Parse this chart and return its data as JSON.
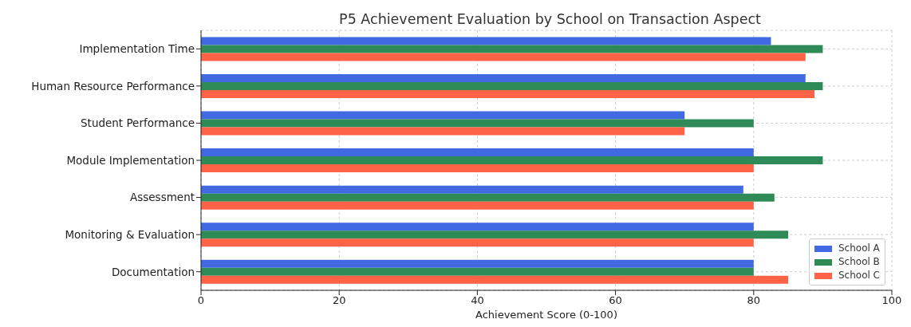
{
  "chart_data": {
    "type": "bar",
    "orientation": "horizontal",
    "title": "P5 Achievement Evaluation by School on Transaction Aspect",
    "xlabel": "Achievement Score (0-100)",
    "categories": [
      "Implementation Time",
      "Human Resource Performance",
      "Student Performance",
      "Module Implementation",
      "Assessment",
      "Monitoring & Evaluation",
      "Documentation"
    ],
    "series": [
      {
        "name": "School A",
        "color": "#4169e1",
        "values": [
          82.5,
          87.5,
          70,
          80,
          78.5,
          80,
          80
        ]
      },
      {
        "name": "School B",
        "color": "#2e8b57",
        "values": [
          90,
          90,
          80,
          90,
          83,
          85,
          80
        ]
      },
      {
        "name": "School C",
        "color": "#ff6347",
        "values": [
          87.5,
          88.8,
          70,
          80,
          80,
          80,
          85
        ]
      }
    ],
    "xlim": [
      0,
      100
    ],
    "xticks": [
      0,
      20,
      40,
      60,
      80,
      100
    ],
    "grid": true,
    "legend": "bottom right"
  }
}
